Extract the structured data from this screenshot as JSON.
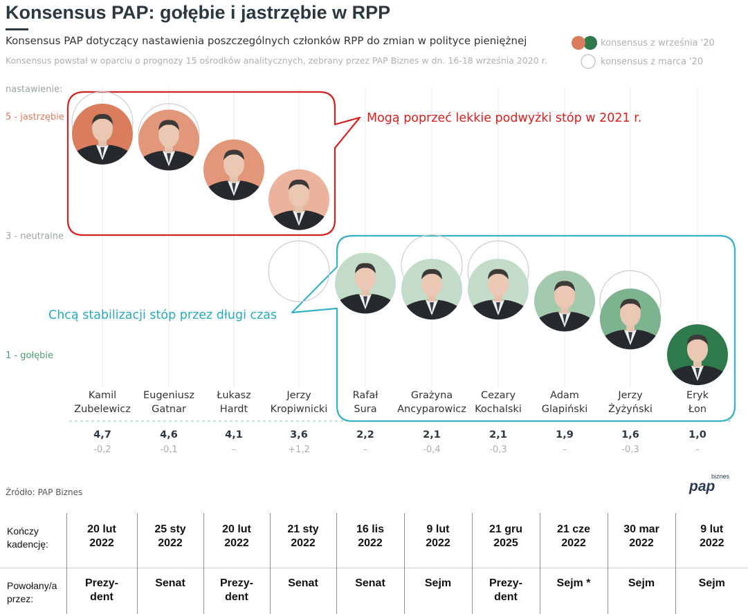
{
  "header": {
    "title": "Konsensus PAP: gołębie i jastrzębie w RPP",
    "subtitle": "Konsensus PAP dotyczący nastawienia poszczególnych członków RPP do zmian w polityce pieniężnej",
    "note": "Konsensus powstał w oparciu o prognozy 15 ośrodków analitycznych, zebrany przez PAP Biznes w dn. 16-18 września 2020 r."
  },
  "legend": {
    "current": "konsensus z września '20",
    "previous": "konsensus z marca '20"
  },
  "colors": {
    "hawk_strong": "#d97d5c",
    "hawk_mid": "#e2967a",
    "hawk_light": "#ebb29c",
    "neutral_light": "#c2dcc9",
    "dove_light": "#a3c9ae",
    "dove_mid": "#7db48f",
    "dove_strong": "#2f7a4d",
    "red_box": "#d42020",
    "teal_box": "#35b2c2",
    "axis_label_hawk": "#d97d5c",
    "axis_label_neutral": "#9aa3a8",
    "axis_label_dove": "#4f9a6d"
  },
  "chart_data": {
    "type": "scatter",
    "y_axis_title": "nastawienie:",
    "ylim": [
      1,
      5
    ],
    "y_ticks": [
      {
        "value": 5,
        "label": "5 - jastrzębie"
      },
      {
        "value": 3,
        "label": "3 - neutralne"
      },
      {
        "value": 1,
        "label": "1 - gołębie"
      }
    ],
    "members": [
      {
        "first": "Kamil",
        "last": "Zubelewicz",
        "value": 4.7,
        "value_label": "4,7",
        "change": "-0,2",
        "tier": "hawk_strong",
        "previous": 4.9
      },
      {
        "first": "Eugeniusz",
        "last": "Gatnar",
        "value": 4.6,
        "value_label": "4,6",
        "change": "-0,1",
        "tier": "hawk_mid",
        "previous": 4.7
      },
      {
        "first": "Łukasz",
        "last": "Hardt",
        "value": 4.1,
        "value_label": "4,1",
        "change": "–",
        "tier": "hawk_mid",
        "previous": null
      },
      {
        "first": "Jerzy",
        "last": "Kropiwnicki",
        "value": 3.6,
        "value_label": "3,6",
        "change": "+1,2",
        "tier": "hawk_light",
        "previous": 2.4
      },
      {
        "first": "Rafał",
        "last": "Sura",
        "value": 2.2,
        "value_label": "2,2",
        "change": "–",
        "tier": "neutral_light",
        "previous": null
      },
      {
        "first": "Grażyna",
        "last": "Ancyparowicz",
        "value": 2.1,
        "value_label": "2,1",
        "change": "-0,4",
        "tier": "neutral_light",
        "previous": 2.5
      },
      {
        "first": "Cezary",
        "last": "Kochalski",
        "value": 2.1,
        "value_label": "2,1",
        "change": "-0,3",
        "tier": "neutral_light",
        "previous": 2.4
      },
      {
        "first": "Adam",
        "last": "Glapiński",
        "value": 1.9,
        "value_label": "1,9",
        "change": "–",
        "tier": "dove_light",
        "previous": null
      },
      {
        "first": "Jerzy",
        "last": "Żyżyński",
        "value": 1.6,
        "value_label": "1,6",
        "change": "-0,3",
        "tier": "dove_mid",
        "previous": 1.9
      },
      {
        "first": "Eryk",
        "last": "Łon",
        "value": 1.0,
        "value_label": "1,0",
        "change": "–",
        "tier": "dove_strong",
        "previous": null
      }
    ],
    "callouts": {
      "hawks": "Mogą poprzeć lekkie podwyżki stóp w 2021 r.",
      "doves": "Chcą stabilizacji stóp przez długi czas"
    }
  },
  "table": {
    "term_label": "Kończy\nkadencję:",
    "appointed_label": "Powołany/a\nprzez:",
    "term_ends": [
      "20 lut\n2022",
      "25 sty\n2022",
      "20 lut\n2022",
      "21 sty\n2022",
      "16 lis\n2022",
      "9 lut\n2022",
      "21 gru\n2025",
      "21 cze\n2022",
      "30 mar\n2022",
      "9 lut\n2022"
    ],
    "appointed_by": [
      "Prezy-\ndent",
      "Senat",
      "Prezy-\ndent",
      "Senat",
      "Senat",
      "Sejm",
      "Prezy-\ndent",
      "Sejm *",
      "Sejm",
      "Sejm"
    ]
  },
  "footer": {
    "source": "Źródło: PAP Biznes",
    "logo": "pap",
    "logo_super": "biznes"
  }
}
